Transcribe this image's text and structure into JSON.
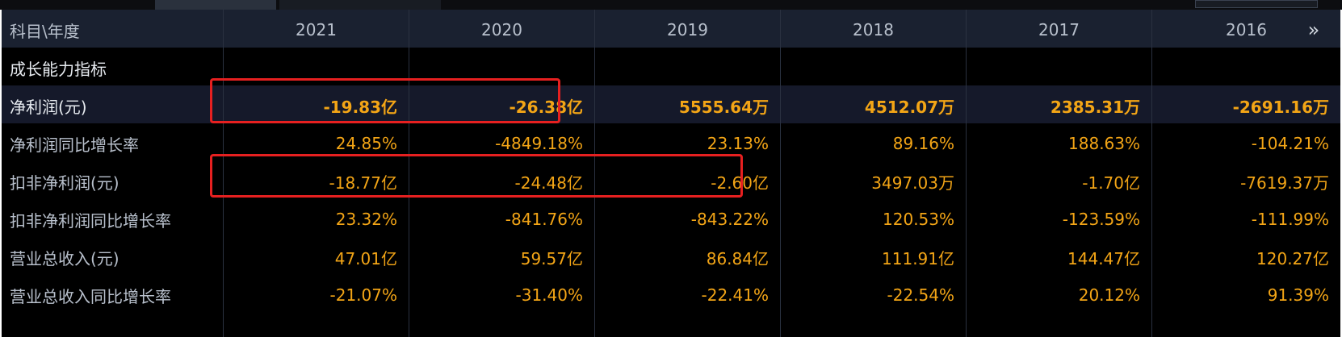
{
  "table": {
    "header": {
      "label": "科目\\年度",
      "years": [
        "2021",
        "2020",
        "2019",
        "2018",
        "2017",
        "2016"
      ],
      "more_icon": "double-chevron-right-icon",
      "more_glyph": "»"
    },
    "rows": [
      {
        "label": "成长能力指标",
        "values": [
          "",
          "",
          "",
          "",
          "",
          ""
        ]
      },
      {
        "label": "净利润(元)",
        "values": [
          "-19.83亿",
          "-26.38亿",
          "5555.64万",
          "4512.07万",
          "2385.31万",
          "-2691.16万"
        ]
      },
      {
        "label": "净利润同比增长率",
        "values": [
          "24.85%",
          "-4849.18%",
          "23.13%",
          "89.16%",
          "188.63%",
          "-104.21%"
        ]
      },
      {
        "label": "扣非净利润(元)",
        "values": [
          "-18.77亿",
          "-24.48亿",
          "-2.60亿",
          "3497.03万",
          "-1.70亿",
          "-7619.37万"
        ]
      },
      {
        "label": "扣非净利润同比增长率",
        "values": [
          "23.32%",
          "-841.76%",
          "-843.22%",
          "120.53%",
          "-123.59%",
          "-111.99%"
        ]
      },
      {
        "label": "营业总收入(元)",
        "values": [
          "47.01亿",
          "59.57亿",
          "86.84亿",
          "111.91亿",
          "144.47亿",
          "120.27亿"
        ]
      },
      {
        "label": "营业总收入同比增长率",
        "values": [
          "-21.07%",
          "-31.40%",
          "-22.41%",
          "-22.54%",
          "20.12%",
          "91.39%"
        ]
      }
    ]
  },
  "colors": {
    "value_orange": "#f3a516",
    "label_gray": "#b8c0cc",
    "annotation_red": "#e62020"
  }
}
